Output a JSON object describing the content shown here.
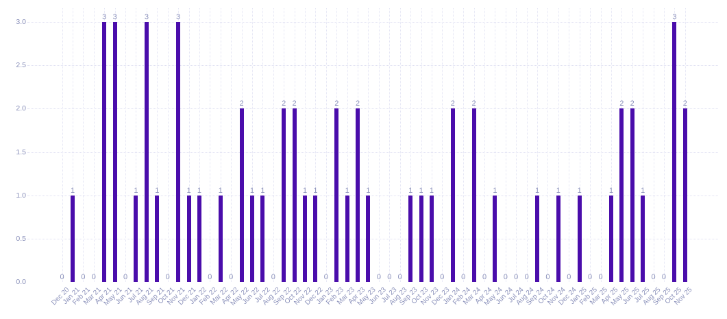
{
  "chart_data": {
    "type": "bar",
    "categories": [
      "Dec 20",
      "Jan 21",
      "Feb 21",
      "Mar 21",
      "Apr 21",
      "May 21",
      "Jun 21",
      "Jul 21",
      "Aug 21",
      "Sep 21",
      "Oct 21",
      "Nov 21",
      "Dec 21",
      "Jan 22",
      "Feb 22",
      "Mar 22",
      "Apr 22",
      "May 22",
      "Jun 22",
      "Jul 22",
      "Aug 22",
      "Sep 22",
      "Oct 22",
      "Nov 22",
      "Dec 22",
      "Jan 23",
      "Feb 23",
      "Mar 23",
      "Apr 23",
      "May 23",
      "Jun 23",
      "Jul 23",
      "Aug 23",
      "Sep 23",
      "Oct 23",
      "Nov 23",
      "Dec 23",
      "Jan 24",
      "Feb 24",
      "Mar 24",
      "Apr 24",
      "May 24",
      "Jun 24",
      "Jul 24",
      "Aug 24",
      "Sep 24",
      "Oct 24",
      "Nov 24",
      "Dec 24",
      "Jan 25",
      "Feb 25",
      "Mar 25",
      "Apr 25",
      "May 25",
      "Jun 25",
      "Jul 25",
      "Aug 25",
      "Sep 25",
      "Oct 25",
      "Nov 25"
    ],
    "values": [
      0,
      1,
      0,
      0,
      3,
      3,
      0,
      1,
      3,
      1,
      0,
      3,
      1,
      1,
      0,
      1,
      0,
      2,
      1,
      1,
      0,
      2,
      2,
      1,
      1,
      0,
      2,
      1,
      2,
      1,
      0,
      0,
      0,
      1,
      1,
      1,
      0,
      2,
      0,
      2,
      0,
      1,
      0,
      0,
      0,
      1,
      0,
      1,
      0,
      1,
      0,
      0,
      1,
      2,
      2,
      1,
      0,
      0,
      3,
      2
    ],
    "y_ticks": [
      "0.0",
      "0.5",
      "1.0",
      "1.5",
      "2.0",
      "2.5",
      "3.0"
    ],
    "ylim": [
      0,
      3
    ],
    "show_value_labels": true,
    "grid": "dotted horizontal and vertical",
    "legend": "none",
    "colors": {
      "bar": "#4a0dab",
      "tick_label": "#8a90ba",
      "value_label": "#8a90ba",
      "h_gridline": "#dfe0f2",
      "v_gridline": "#e3e4f4",
      "background": "#ffffff"
    }
  }
}
